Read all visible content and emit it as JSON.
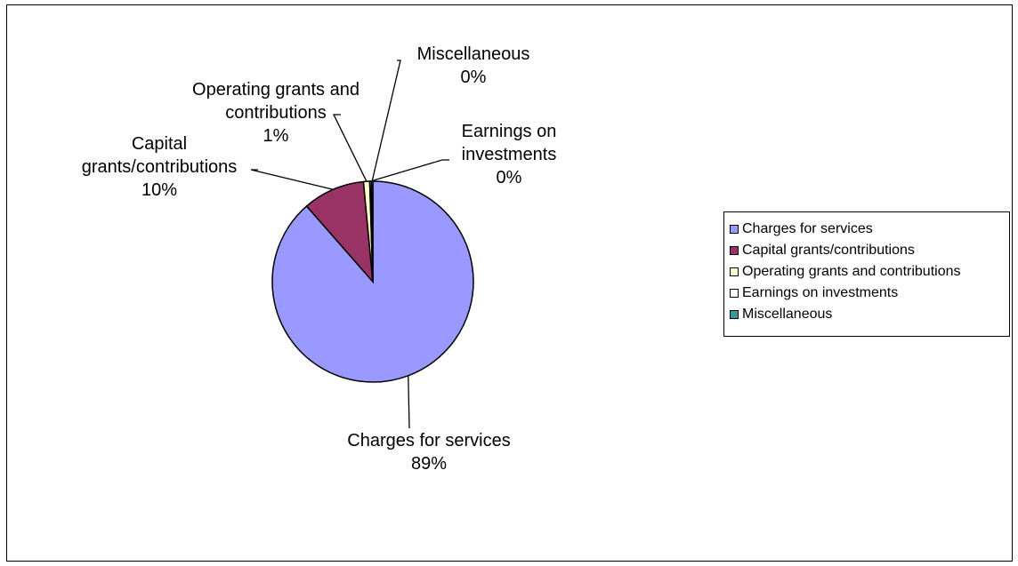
{
  "chart_data": {
    "type": "pie",
    "categories": [
      "Charges for services",
      "Capital grants/contributions",
      "Operating grants and contributions",
      "Earnings on investments",
      "Miscellaneous"
    ],
    "values": [
      89,
      10,
      1,
      0,
      0
    ],
    "data_labels": [
      [
        "Charges for services",
        "89%"
      ],
      [
        "Capital",
        "grants/contributions",
        "10%"
      ],
      [
        "Operating grants and",
        "contributions",
        "1%"
      ],
      [
        "Earnings on",
        "investments",
        "0%"
      ],
      [
        "Miscellaneous",
        "0%"
      ]
    ],
    "colors": [
      "#9999FF",
      "#993366",
      "#FFFFCC",
      "#FFFFFF",
      "#339999"
    ],
    "legend": {
      "position": "right",
      "entries": [
        "Charges for services",
        "Capital grants/contributions",
        "Operating grants and contributions",
        "Earnings on investments",
        "Miscellaneous"
      ]
    }
  }
}
